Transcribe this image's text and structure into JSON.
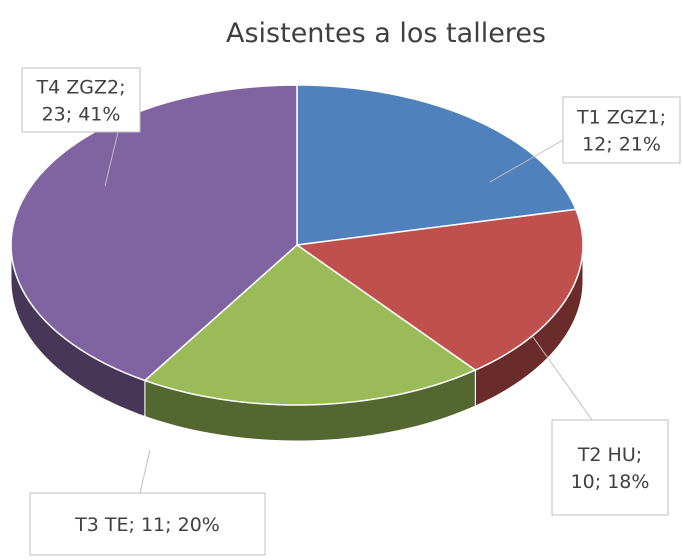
{
  "chart_data": {
    "type": "pie3d",
    "title": "Asistentes a los talleres",
    "categories": [
      "T1 ZGZ1",
      "T2 HU",
      "T3 TE",
      "T4 ZGZ2"
    ],
    "values": [
      12,
      10,
      11,
      23
    ],
    "percent_labels": [
      "21%",
      "18%",
      "20%",
      "41%"
    ],
    "separator": "; ",
    "colors": [
      "#4f81bd",
      "#c0504d",
      "#9bbb59",
      "#8064a2"
    ]
  }
}
